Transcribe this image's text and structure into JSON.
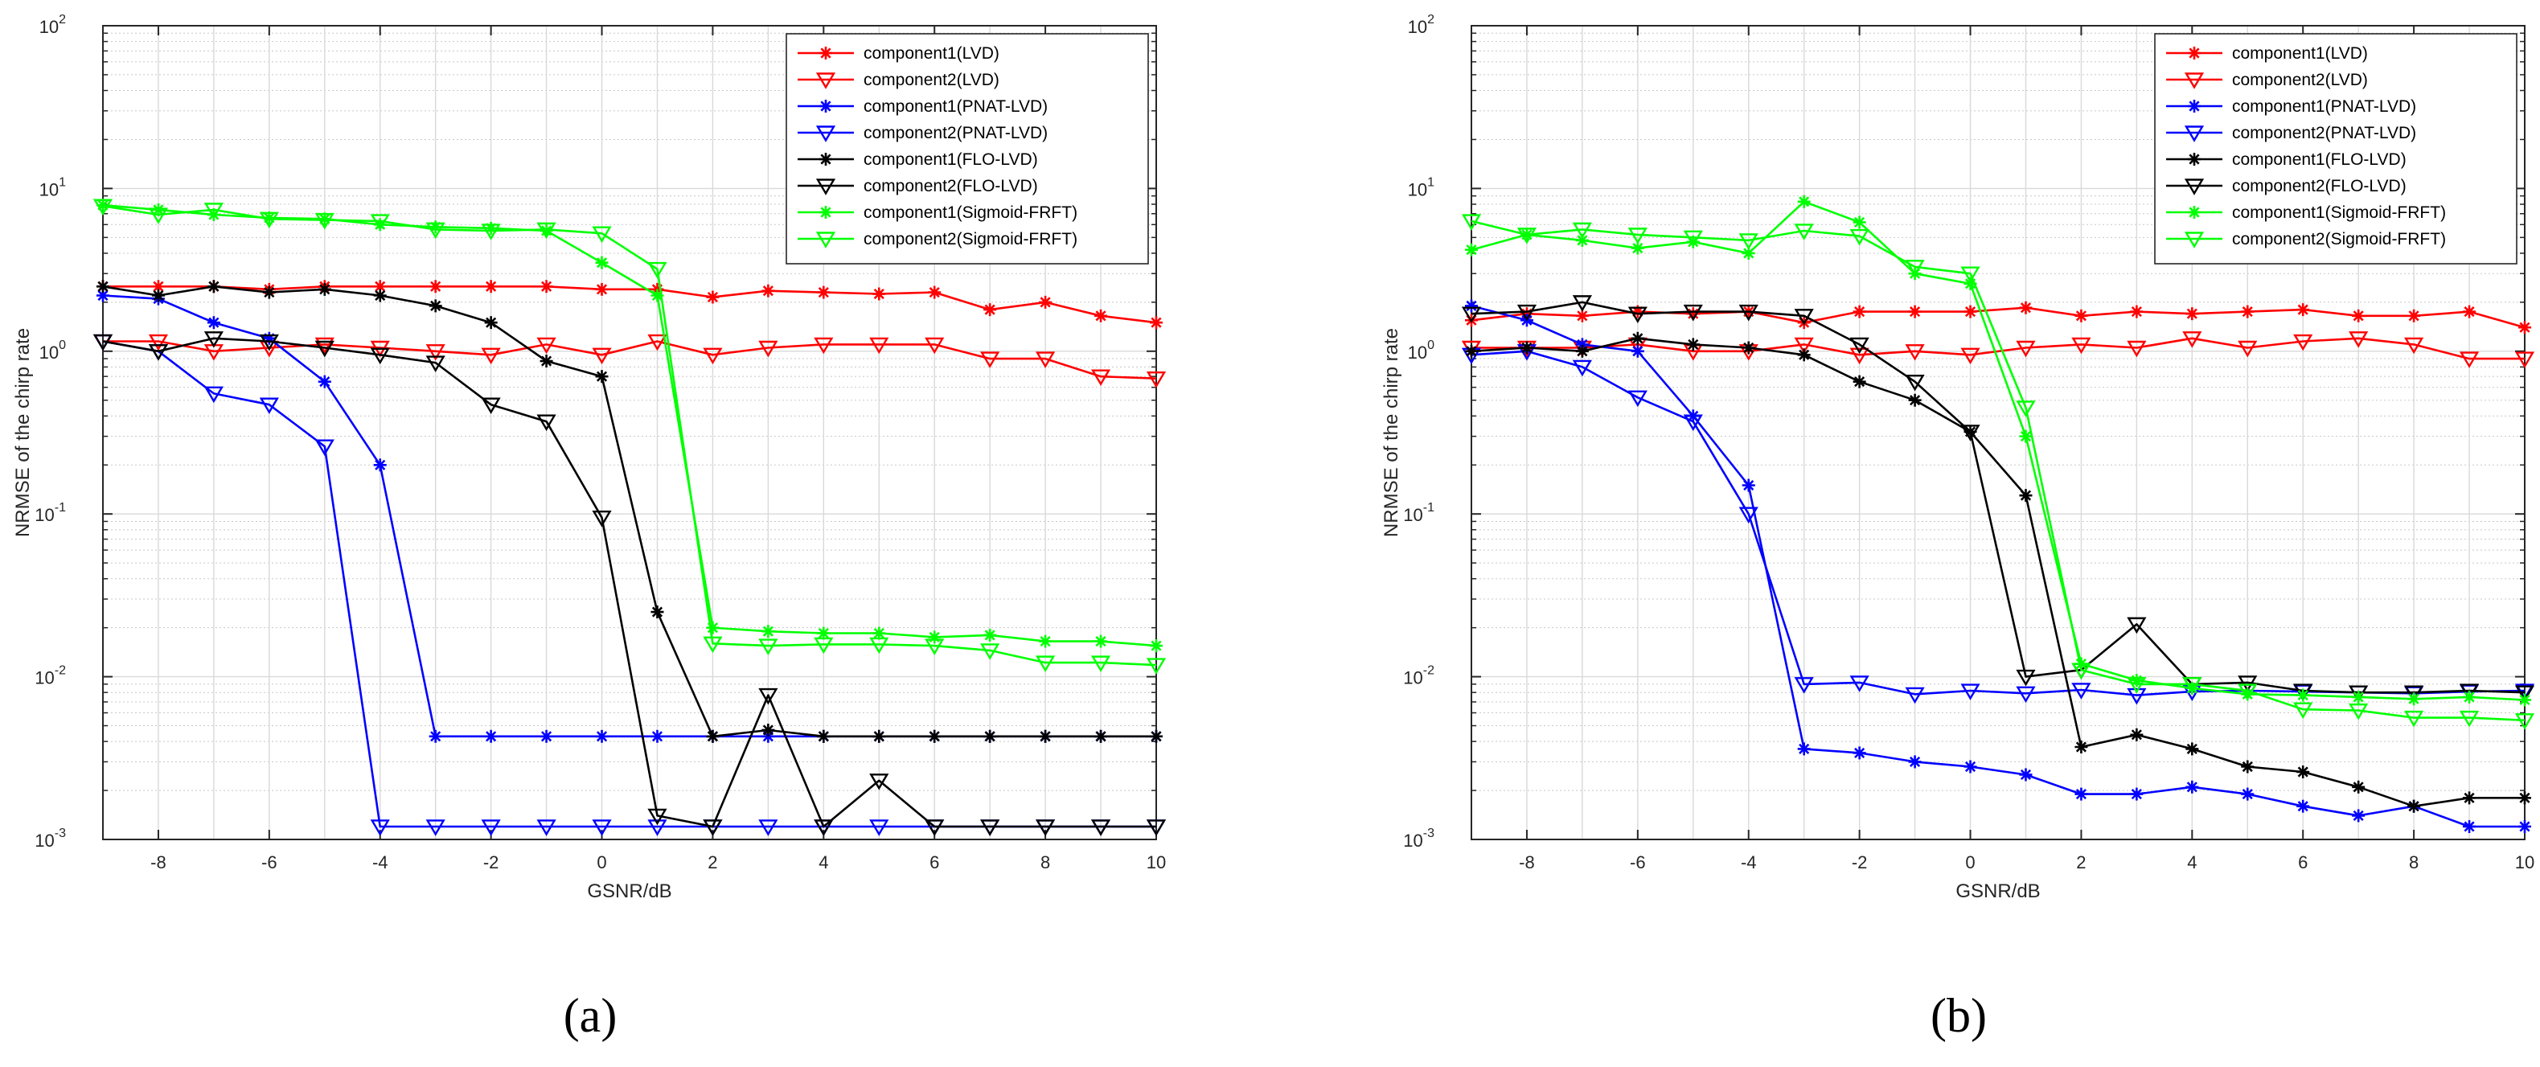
{
  "figure": {
    "captions": [
      "(a)",
      "(b)"
    ]
  },
  "chart_data": [
    {
      "type": "line",
      "title": "",
      "xlabel": "GSNR/dB",
      "ylabel": "NRMSE of the chirp rate",
      "yscale": "log",
      "xlim": [
        -9,
        10
      ],
      "ylim": [
        0.001,
        100
      ],
      "xticks": [
        -8,
        -6,
        -4,
        -2,
        0,
        2,
        4,
        6,
        8,
        10
      ],
      "yticks": [
        {
          "base": "10",
          "exp": "-3"
        },
        {
          "base": "10",
          "exp": "-2"
        },
        {
          "base": "10",
          "exp": "-1"
        },
        {
          "base": "10",
          "exp": "0"
        },
        {
          "base": "10",
          "exp": "1"
        },
        {
          "base": "10",
          "exp": "2"
        }
      ],
      "grid": true,
      "legend_position": "top-right",
      "x": [
        -9,
        -8,
        -7,
        -6,
        -5,
        -4,
        -3,
        -2,
        -1,
        0,
        1,
        2,
        3,
        4,
        5,
        6,
        7,
        8,
        9,
        10
      ],
      "series": [
        {
          "name": "component1(LVD)",
          "color": "#ff0000",
          "marker": "star",
          "values": [
            2.5,
            2.5,
            2.5,
            2.4,
            2.5,
            2.5,
            2.5,
            2.5,
            2.5,
            2.4,
            2.4,
            2.15,
            2.35,
            2.3,
            2.25,
            2.3,
            1.8,
            2.0,
            1.65,
            1.5
          ]
        },
        {
          "name": "component2(LVD)",
          "color": "#ff0000",
          "marker": "triangle",
          "values": [
            1.15,
            1.15,
            1.0,
            1.05,
            1.1,
            1.05,
            1.0,
            0.95,
            1.1,
            0.95,
            1.15,
            0.95,
            1.05,
            1.1,
            1.1,
            1.1,
            0.9,
            0.9,
            0.7,
            0.68
          ]
        },
        {
          "name": "component1(PNAT-LVD)",
          "color": "#0000ff",
          "marker": "star",
          "values": [
            2.2,
            2.1,
            1.5,
            1.2,
            0.65,
            0.2,
            0.0043,
            0.0043,
            0.0043,
            0.0043,
            0.0043,
            0.0043,
            0.0043,
            0.0043,
            0.0043,
            0.0043,
            0.0043,
            0.0043,
            0.0043,
            0.0043
          ]
        },
        {
          "name": "component2(PNAT-LVD)",
          "color": "#0000ff",
          "marker": "triangle",
          "values": [
            1.15,
            1.0,
            0.55,
            0.47,
            0.26,
            0.0012,
            0.0012,
            0.0012,
            0.0012,
            0.0012,
            0.0012,
            0.0012,
            0.0012,
            0.0012,
            0.0012,
            0.0012,
            0.0012,
            0.0012,
            0.0012,
            0.0012
          ]
        },
        {
          "name": "component1(FLO-LVD)",
          "color": "#000000",
          "marker": "star",
          "values": [
            2.5,
            2.2,
            2.5,
            2.3,
            2.4,
            2.2,
            1.9,
            1.5,
            0.87,
            0.7,
            0.025,
            0.0043,
            0.0047,
            0.0043,
            0.0043,
            0.0043,
            0.0043,
            0.0043,
            0.0043,
            0.0043
          ]
        },
        {
          "name": "component2(FLO-LVD)",
          "color": "#000000",
          "marker": "triangle",
          "values": [
            1.15,
            1.0,
            1.2,
            1.15,
            1.05,
            0.95,
            0.85,
            0.47,
            0.37,
            0.095,
            0.0014,
            0.0012,
            0.0077,
            0.0012,
            0.0023,
            0.0012,
            0.0012,
            0.0012,
            0.0012,
            0.0012
          ]
        },
        {
          "name": "component1(Sigmoid-FRFT)",
          "color": "#00ff00",
          "marker": "star",
          "values": [
            7.9,
            7.4,
            6.9,
            6.6,
            6.5,
            6.0,
            5.8,
            5.7,
            5.5,
            3.5,
            2.2,
            0.02,
            0.019,
            0.0185,
            0.0185,
            0.0175,
            0.018,
            0.0165,
            0.0165,
            0.0155
          ]
        },
        {
          "name": "component2(Sigmoid-FRFT)",
          "color": "#00ff00",
          "marker": "triangle",
          "values": [
            7.8,
            6.9,
            7.4,
            6.5,
            6.4,
            6.3,
            5.6,
            5.5,
            5.6,
            5.3,
            3.2,
            0.016,
            0.0155,
            0.0158,
            0.0158,
            0.0155,
            0.0145,
            0.0122,
            0.0122,
            0.0118
          ]
        }
      ]
    },
    {
      "type": "line",
      "title": "",
      "xlabel": "GSNR/dB",
      "ylabel": "NRMSE of the chirp rate",
      "yscale": "log",
      "xlim": [
        -9,
        10
      ],
      "ylim": [
        0.001,
        100
      ],
      "xticks": [
        -8,
        -6,
        -4,
        -2,
        0,
        2,
        4,
        6,
        8,
        10
      ],
      "yticks": [
        {
          "base": "10",
          "exp": "-3"
        },
        {
          "base": "10",
          "exp": "-2"
        },
        {
          "base": "10",
          "exp": "-1"
        },
        {
          "base": "10",
          "exp": "0"
        },
        {
          "base": "10",
          "exp": "1"
        },
        {
          "base": "10",
          "exp": "2"
        }
      ],
      "grid": true,
      "legend_position": "top-right",
      "x": [
        -9,
        -8,
        -7,
        -6,
        -5,
        -4,
        -3,
        -2,
        -1,
        0,
        1,
        2,
        3,
        4,
        5,
        6,
        7,
        8,
        9,
        10
      ],
      "series": [
        {
          "name": "component1(LVD)",
          "color": "#ff0000",
          "marker": "star",
          "values": [
            1.55,
            1.7,
            1.65,
            1.75,
            1.7,
            1.75,
            1.5,
            1.75,
            1.75,
            1.75,
            1.85,
            1.65,
            1.75,
            1.7,
            1.75,
            1.8,
            1.65,
            1.65,
            1.75,
            1.4
          ]
        },
        {
          "name": "component2(LVD)",
          "color": "#ff0000",
          "marker": "triangle",
          "values": [
            1.05,
            1.05,
            1.05,
            1.1,
            1.0,
            1.0,
            1.1,
            0.95,
            1.0,
            0.95,
            1.05,
            1.1,
            1.05,
            1.2,
            1.05,
            1.15,
            1.2,
            1.1,
            0.9,
            0.9
          ]
        },
        {
          "name": "component1(PNAT-LVD)",
          "color": "#0000ff",
          "marker": "star",
          "values": [
            1.9,
            1.55,
            1.1,
            1.0,
            0.4,
            0.15,
            0.0036,
            0.0034,
            0.003,
            0.0028,
            0.0025,
            0.0019,
            0.0019,
            0.0021,
            0.0019,
            0.0016,
            0.0014,
            0.0016,
            0.0012,
            0.0012
          ]
        },
        {
          "name": "component2(PNAT-LVD)",
          "color": "#0000ff",
          "marker": "triangle",
          "values": [
            0.95,
            1.0,
            0.8,
            0.52,
            0.37,
            0.1,
            0.009,
            0.0092,
            0.0078,
            0.0082,
            0.0079,
            0.0083,
            0.0077,
            0.0081,
            0.0082,
            0.0081,
            0.008,
            0.0079,
            0.0081,
            0.0082
          ]
        },
        {
          "name": "component1(FLO-LVD)",
          "color": "#000000",
          "marker": "star",
          "values": [
            1.0,
            1.05,
            1.0,
            1.2,
            1.1,
            1.05,
            0.95,
            0.65,
            0.5,
            0.32,
            0.13,
            0.0037,
            0.0044,
            0.0036,
            0.0028,
            0.0026,
            0.0021,
            0.0016,
            0.0018,
            0.0018
          ]
        },
        {
          "name": "component2(FLO-LVD)",
          "color": "#000000",
          "marker": "triangle",
          "values": [
            1.7,
            1.75,
            2.0,
            1.7,
            1.75,
            1.75,
            1.65,
            1.1,
            0.65,
            0.32,
            0.01,
            0.011,
            0.021,
            0.009,
            0.0092,
            0.0082,
            0.008,
            0.008,
            0.0082,
            0.008
          ]
        },
        {
          "name": "component1(Sigmoid-FRFT)",
          "color": "#00ff00",
          "marker": "star",
          "values": [
            4.2,
            5.2,
            4.8,
            4.3,
            4.7,
            4.0,
            8.3,
            6.2,
            3.0,
            2.6,
            0.3,
            0.012,
            0.0095,
            0.0085,
            0.0078,
            0.0077,
            0.0075,
            0.0073,
            0.0075,
            0.0072
          ]
        },
        {
          "name": "component2(Sigmoid-FRFT)",
          "color": "#00ff00",
          "marker": "triangle",
          "values": [
            6.3,
            5.2,
            5.6,
            5.2,
            5.0,
            4.8,
            5.5,
            5.1,
            3.3,
            3.0,
            0.45,
            0.011,
            0.009,
            0.009,
            0.0082,
            0.0063,
            0.0062,
            0.0056,
            0.0056,
            0.0054
          ]
        }
      ]
    }
  ]
}
